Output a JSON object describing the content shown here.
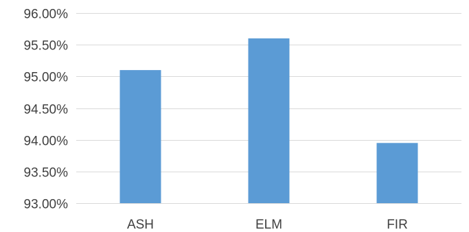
{
  "chart_data": {
    "type": "bar",
    "title": "",
    "xlabel": "",
    "ylabel": "",
    "categories": [
      "ASH",
      "ELM",
      "FIR"
    ],
    "values": [
      0.951,
      0.956,
      0.9395
    ],
    "ylim": [
      0.93,
      0.96
    ],
    "y_ticks": [
      0.93,
      0.935,
      0.94,
      0.945,
      0.95,
      0.955,
      0.96
    ],
    "y_tick_labels": [
      "93.00%",
      "93.50%",
      "94.00%",
      "94.50%",
      "95.00%",
      "95.50%",
      "96.00%"
    ],
    "grid": true,
    "legend": "none",
    "bar_color": "#5b9bd5",
    "grid_color": "#d9d9d9",
    "text_color": "#404040"
  }
}
